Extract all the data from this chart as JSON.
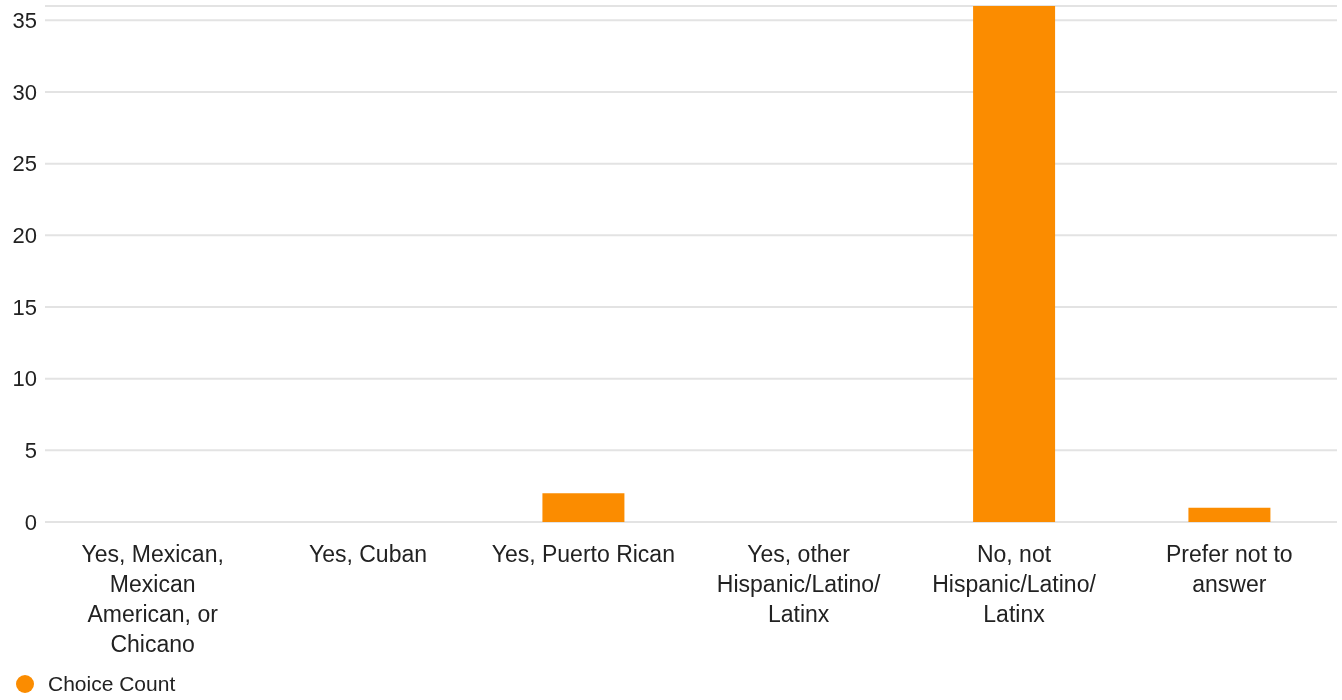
{
  "chart_data": {
    "type": "bar",
    "categories": [
      "Yes, Mexican, Mexican American, or Chicano",
      "Yes, Cuban",
      "Yes, Puerto Rican",
      "Yes, other Hispanic/Latino/ Latinx",
      "No, not Hispanic/Latino/ Latinx",
      "Prefer not to answer"
    ],
    "series": [
      {
        "name": "Choice Count",
        "color": "#fb8c00",
        "values": [
          0,
          0,
          2,
          0,
          36,
          1
        ]
      }
    ],
    "ylim": [
      0,
      36
    ],
    "yticks": [
      0,
      5,
      10,
      15,
      20,
      25,
      30,
      35
    ],
    "grid": "y",
    "legend": "bottom left"
  }
}
